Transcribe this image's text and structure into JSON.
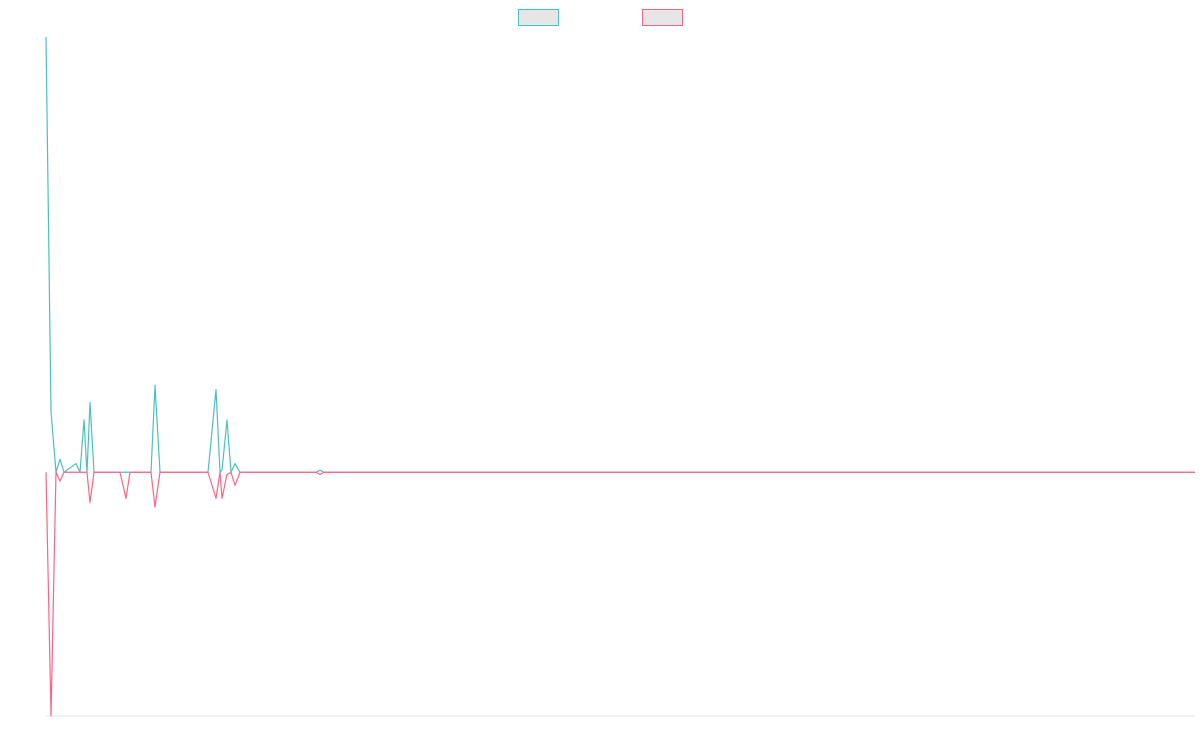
{
  "chart_data": {
    "type": "line",
    "legend": "top",
    "x": [
      0,
      5,
      10,
      14,
      18,
      30,
      34,
      38,
      41,
      44,
      48,
      74,
      80,
      84,
      105,
      109,
      114,
      162,
      170,
      174,
      176,
      181,
      185,
      189,
      194,
      270,
      274,
      278,
      1149
    ],
    "series": [
      {
        "color": "#4bc0c0",
        "values": [
          100,
          14,
          0,
          3,
          0,
          2,
          0,
          12,
          0,
          16,
          0,
          0,
          0,
          0,
          0,
          20,
          0,
          0,
          19,
          0,
          0.5,
          12,
          0,
          2,
          0,
          0,
          0.5,
          0,
          0
        ]
      },
      {
        "color": "#ff6384",
        "values": [
          0,
          -56,
          0,
          -2,
          0,
          0,
          0,
          0,
          0,
          -7,
          0,
          0,
          -6,
          0,
          0,
          -8,
          0,
          0,
          -6,
          0,
          -6,
          -0.5,
          0,
          -3,
          0,
          0,
          -0.5,
          0,
          0
        ]
      }
    ],
    "xlim": [
      0,
      1149
    ],
    "ylim": [
      -56,
      100
    ]
  }
}
